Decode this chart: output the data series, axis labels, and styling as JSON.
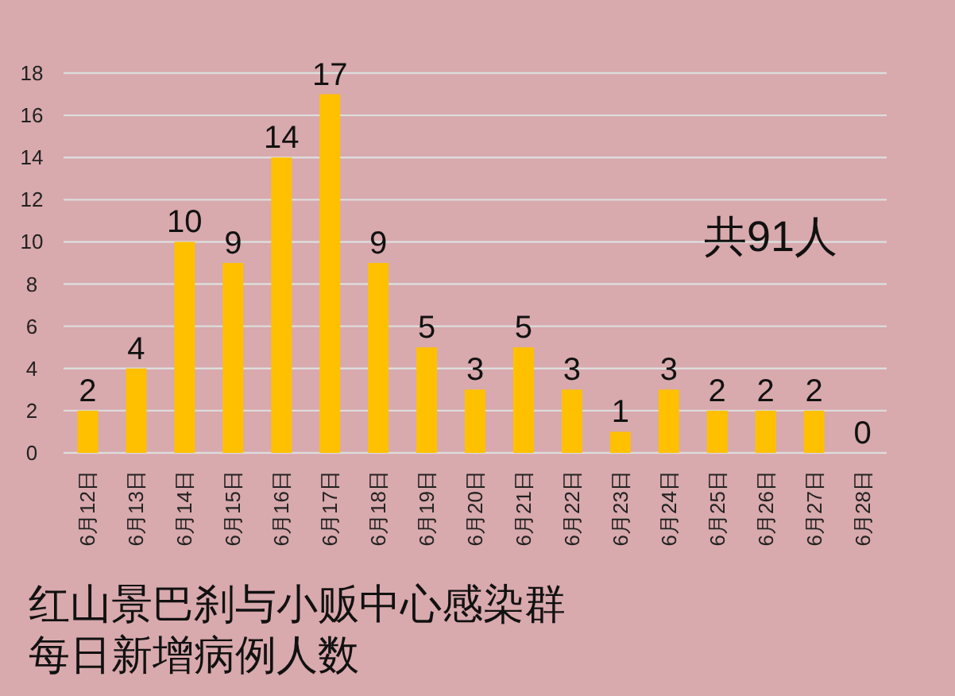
{
  "chart_data": {
    "type": "bar",
    "title": "红山景巴刹与小贩中心感染群",
    "subtitle": "每日新增病例人数",
    "annotations": [
      "共91人"
    ],
    "categories": [
      "6月12日",
      "6月13日",
      "6月14日",
      "6月15日",
      "6月16日",
      "6月17日",
      "6月18日",
      "6月19日",
      "6月20日",
      "6月21日",
      "6月22日",
      "6月23日",
      "6月24日",
      "6月25日",
      "6月26日",
      "6月27日",
      "6月28日"
    ],
    "values": [
      2,
      4,
      10,
      9,
      14,
      17,
      9,
      5,
      3,
      5,
      3,
      1,
      3,
      2,
      2,
      2,
      0
    ],
    "color": "#ffc000",
    "ylim": [
      0,
      18
    ],
    "yticks": [
      0,
      2,
      4,
      6,
      8,
      10,
      12,
      14,
      16,
      18
    ],
    "grid": "y",
    "data_labels": true
  }
}
